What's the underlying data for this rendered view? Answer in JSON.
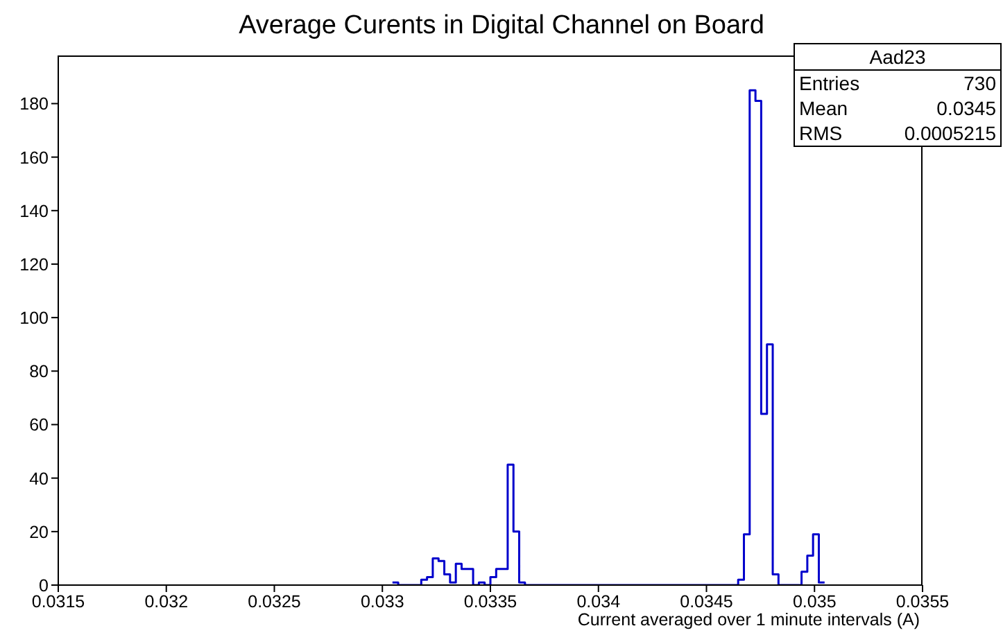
{
  "chart_data": {
    "type": "histogram",
    "title": "Average Curents in Digital Channel on Board",
    "xlabel": "Current averaged over 1 minute intervals (A)",
    "annotations": [
      "Aad23",
      "Entries 730",
      "Mean 0.0345",
      "RMS 0.0005215"
    ],
    "color": "#0000cc",
    "bins": [
      0.0330467,
      0.0330733,
      0.0331,
      0.0331267,
      0.0331533,
      0.03318,
      0.0332067,
      0.0332333,
      0.03326,
      0.0332867,
      0.0333133,
      0.03334,
      0.0333667,
      0.0333933,
      0.03342,
      0.0334467,
      0.0334733,
      0.0335,
      0.0335267,
      0.0335533,
      0.03358,
      0.0336067,
      0.0336333,
      0.03366,
      0.0336867,
      0.0337133,
      0.03374,
      0.0337667,
      0.0337933,
      0.03382,
      0.0338467,
      0.0338733,
      0.0339,
      0.0339267,
      0.0339533,
      0.03398,
      0.0340067,
      0.0340333,
      0.03406,
      0.0340867,
      0.0341133,
      0.03414,
      0.0341667,
      0.0341933,
      0.03422,
      0.0342467,
      0.0342733,
      0.0343,
      0.0343267,
      0.0343533,
      0.03438,
      0.0344067,
      0.0344333,
      0.03446,
      0.0344867,
      0.0345133,
      0.03454,
      0.0345667,
      0.0345933,
      0.03462,
      0.0346467,
      0.0346733,
      0.0347,
      0.0347267,
      0.0347533,
      0.03478,
      0.0348067,
      0.0348333,
      0.03486,
      0.0348867,
      0.0349133,
      0.03494,
      0.0349667,
      0.0349933,
      0.03502,
      0.0350467
    ],
    "values": [
      1,
      0,
      0,
      0,
      0,
      2,
      3,
      10,
      9,
      4,
      1,
      8,
      6,
      6,
      0,
      1,
      0,
      3,
      6,
      6,
      45,
      20,
      1,
      0,
      0,
      0,
      0,
      0,
      0,
      0,
      0,
      0,
      0,
      0,
      0,
      0,
      0,
      0,
      0,
      0,
      0,
      0,
      0,
      0,
      0,
      0,
      0,
      0,
      0,
      0,
      0,
      0,
      0,
      0,
      0,
      0,
      0,
      0,
      0,
      0,
      2,
      19,
      185,
      181,
      64,
      90,
      4,
      0,
      0,
      0,
      0,
      5,
      11,
      19,
      1
    ],
    "xlim": [
      0.0315,
      0.0355
    ],
    "xticks": [
      0.0315,
      0.032,
      0.0325,
      0.033,
      0.0335,
      0.034,
      0.0345,
      0.035,
      0.0355
    ],
    "ylim": [
      0,
      198
    ],
    "yticks": [
      0,
      20,
      40,
      60,
      80,
      100,
      120,
      140,
      160,
      180
    ]
  }
}
